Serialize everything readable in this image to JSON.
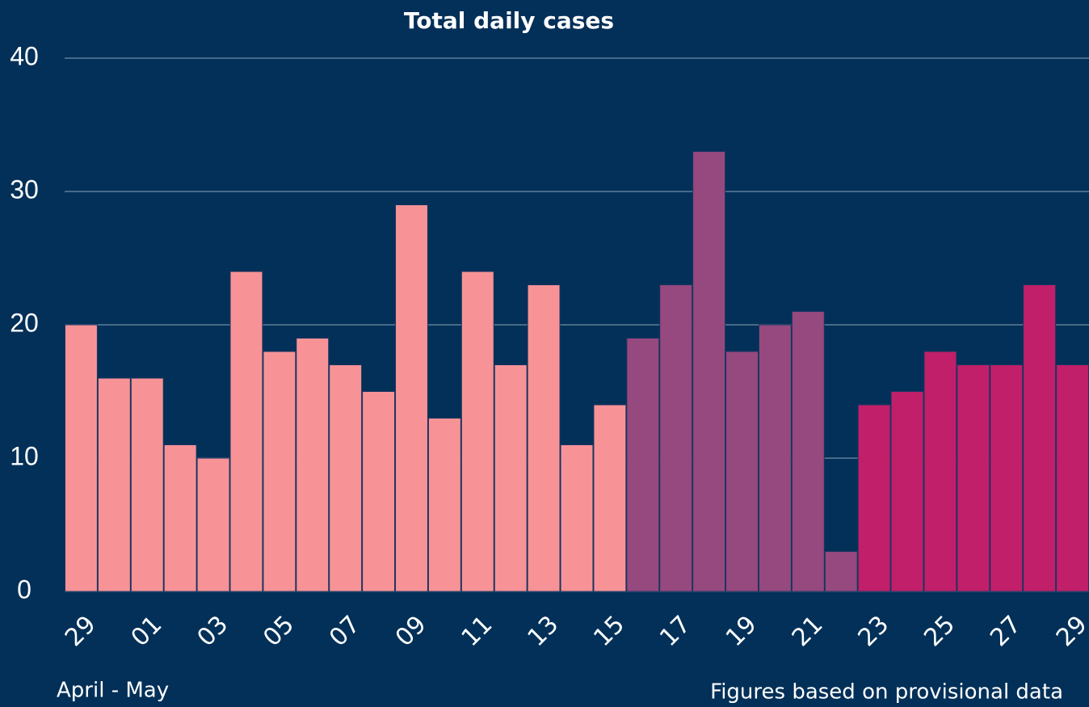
{
  "chart_data": {
    "type": "bar",
    "title": "Total daily cases",
    "categories": [
      "29",
      null,
      "01",
      null,
      "03",
      null,
      "05",
      null,
      "07",
      null,
      "09",
      null,
      "11",
      null,
      "13",
      null,
      "15",
      null,
      "17",
      null,
      "19",
      null,
      "21",
      null,
      "23",
      null,
      "25",
      null,
      "27",
      null,
      "29"
    ],
    "values": [
      20,
      16,
      16,
      11,
      10,
      24,
      18,
      19,
      17,
      15,
      29,
      13,
      24,
      17,
      23,
      11,
      14,
      19,
      23,
      33,
      18,
      20,
      21,
      3,
      14,
      15,
      18,
      17,
      17,
      23,
      17
    ],
    "colors": [
      "#f79397",
      "#f79397",
      "#f79397",
      "#f79397",
      "#f79397",
      "#f79397",
      "#f79397",
      "#f79397",
      "#f79397",
      "#f79397",
      "#f79397",
      "#f79397",
      "#f79397",
      "#f79397",
      "#f79397",
      "#f79397",
      "#f79397",
      "#95497f",
      "#95497f",
      "#95497f",
      "#95497f",
      "#95497f",
      "#95497f",
      "#95497f",
      "#c11f69",
      "#c11f69",
      "#c11f69",
      "#c11f69",
      "#c11f69",
      "#c11f69",
      "#c11f69"
    ],
    "ylim": [
      0,
      40
    ],
    "yticks": [
      0,
      10,
      20,
      30,
      40
    ],
    "grid": true,
    "x_label": "April - May",
    "note": "Figures based on provisional data"
  }
}
